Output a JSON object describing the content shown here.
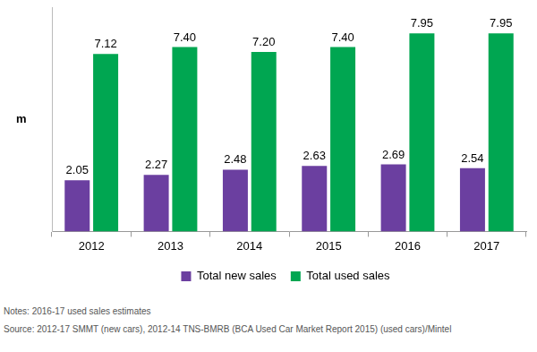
{
  "chart_data": {
    "type": "bar",
    "ylabel": "m",
    "categories": [
      "2012",
      "2013",
      "2014",
      "2015",
      "2016",
      "2017"
    ],
    "series": [
      {
        "name": "Total new sales",
        "color": "#6b3fa0",
        "values": [
          2.05,
          2.27,
          2.48,
          2.63,
          2.69,
          2.54
        ],
        "value_labels": [
          "2.05",
          "2.27",
          "2.48",
          "2.63",
          "2.69",
          "2.54"
        ]
      },
      {
        "name": "Total used sales",
        "color": "#00a651",
        "values": [
          7.12,
          7.4,
          7.2,
          7.4,
          7.95,
          7.95
        ],
        "value_labels": [
          "7.12",
          "7.40",
          "7.20",
          "7.40",
          "7.95",
          "7.95"
        ]
      }
    ],
    "ylim": [
      0,
      9
    ],
    "grid": false,
    "legend": "bottom",
    "data_labels": true,
    "tick_labels": "x",
    "notes": "Notes: 2016-17 used sales estimates",
    "source": "Source: 2012-17 SMMT (new cars), 2012-14 TNS-BMRB (BCA Used Car Market Report 2015) (used cars)/Mintel"
  }
}
